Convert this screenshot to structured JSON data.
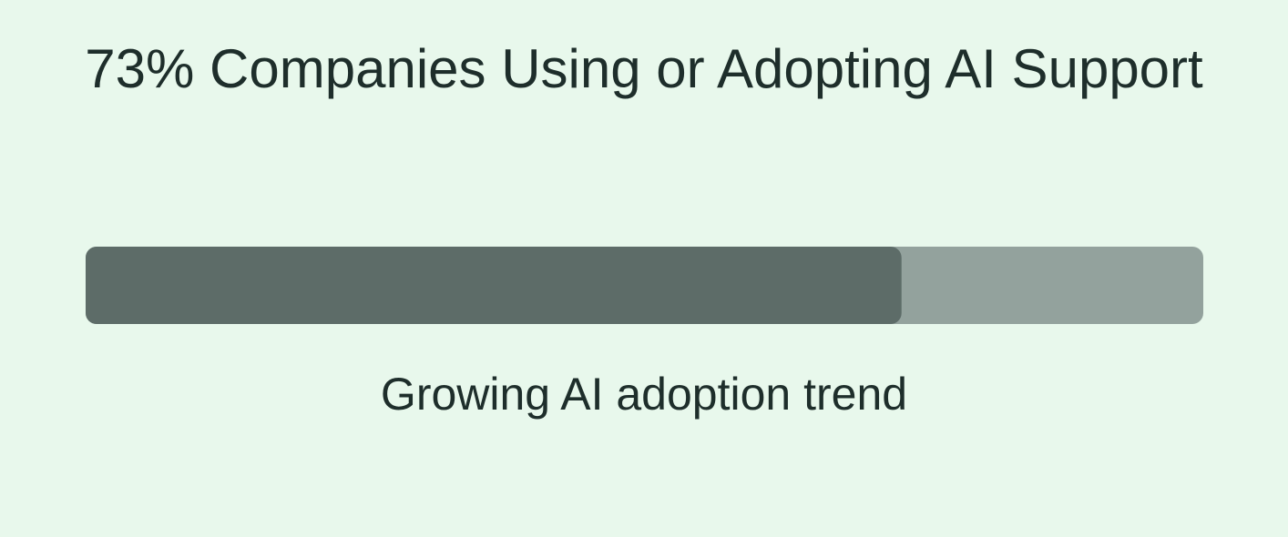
{
  "header": {
    "title": "73% Companies Using or Adopting AI Support"
  },
  "progress": {
    "value": 73,
    "range": [
      0,
      100
    ],
    "fill_color": "#5d6c68",
    "track_color": "#93a29d"
  },
  "caption": "Growing AI adoption trend"
}
